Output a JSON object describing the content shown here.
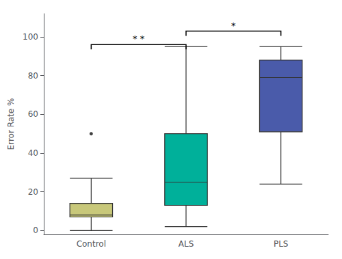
{
  "chart_data": {
    "type": "boxplot",
    "categories": [
      "Control",
      "ALS",
      "PLS"
    ],
    "boxes": [
      {
        "whislo": 0,
        "q1": 7,
        "med": 8,
        "q3": 14,
        "whishi": 27,
        "fliers": [
          50
        ]
      },
      {
        "whislo": 2,
        "q1": 13,
        "med": 25,
        "q3": 50,
        "whishi": 95,
        "fliers": []
      },
      {
        "whislo": 24,
        "q1": 51,
        "med": 79,
        "q3": 88,
        "whishi": 95,
        "fliers": []
      }
    ],
    "colors": [
      "#C8C87A",
      "#00B09A",
      "#4A5BAA"
    ],
    "ylabel": "Error Rate %",
    "ylim": [
      -2,
      112
    ],
    "yticks": [
      0,
      20,
      40,
      60,
      80,
      100
    ],
    "annotations": [
      {
        "from": "Control",
        "to": "ALS",
        "y": 96,
        "label": "* *"
      },
      {
        "from": "ALS",
        "to": "PLS",
        "y": 103,
        "label": "*"
      }
    ],
    "grid": false
  }
}
